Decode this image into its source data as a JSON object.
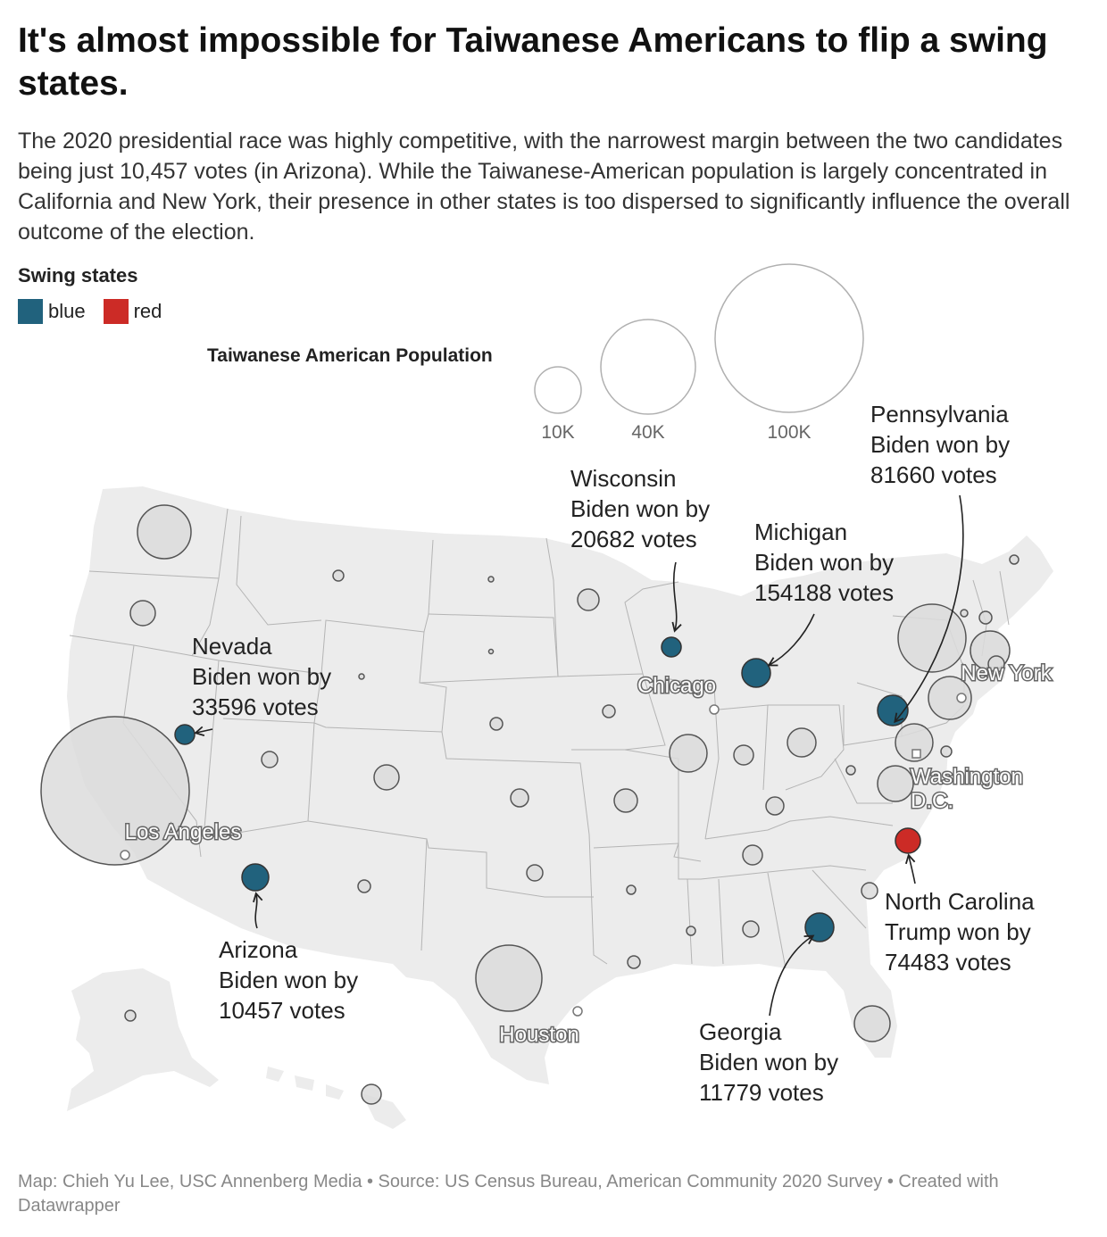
{
  "title": "It's almost impossible for Taiwanese Americans to flip a swing states.",
  "subtitle": "The 2020 presidential race was highly competitive, with the narrowest margin between the two candidates being just 10,457 votes (in Arizona). While the Taiwanese-American population is largely concentrated in California and New York, their presence in other states is too dispersed to significantly influence the overall outcome of the election.",
  "legend": {
    "title": "Swing states",
    "items": [
      {
        "label": "blue",
        "color": "#21627d"
      },
      {
        "label": "red",
        "color": "#cc2b26"
      }
    ]
  },
  "size_legend": {
    "title": "Taiwanese American Population",
    "items": [
      {
        "label": "10K",
        "value": 10000
      },
      {
        "label": "40K",
        "value": 40000
      },
      {
        "label": "100K",
        "value": 100000
      }
    ]
  },
  "cities": [
    "Chicago",
    "New York",
    "Washington D.C.",
    "Los Angeles",
    "Houston"
  ],
  "annotations": [
    {
      "state": "Pennsylvania",
      "line2": "Biden won by",
      "line3": "81660 votes"
    },
    {
      "state": "Wisconsin",
      "line2": "Biden won by",
      "line3": "20682 votes"
    },
    {
      "state": "Michigan",
      "line2": "Biden won by",
      "line3": "154188 votes"
    },
    {
      "state": "Nevada",
      "line2": "Biden won by",
      "line3": "33596 votes"
    },
    {
      "state": "Arizona",
      "line2": "Biden won by",
      "line3": "10457 votes"
    },
    {
      "state": "North Carolina",
      "line2": "Trump won by",
      "line3": "74483 votes"
    },
    {
      "state": "Georgia",
      "line2": "Biden won by",
      "line3": "11779 votes"
    }
  ],
  "colors": {
    "land": "#ececec",
    "border": "#b4b4b4",
    "bubble": "#dcdcdc",
    "bubble_stroke": "#555555"
  },
  "footer": "Map: Chieh Yu Lee, USC Annenberg Media • Source: US Census Bureau, American Community 2020 Survey  • Created with Datawrapper"
}
